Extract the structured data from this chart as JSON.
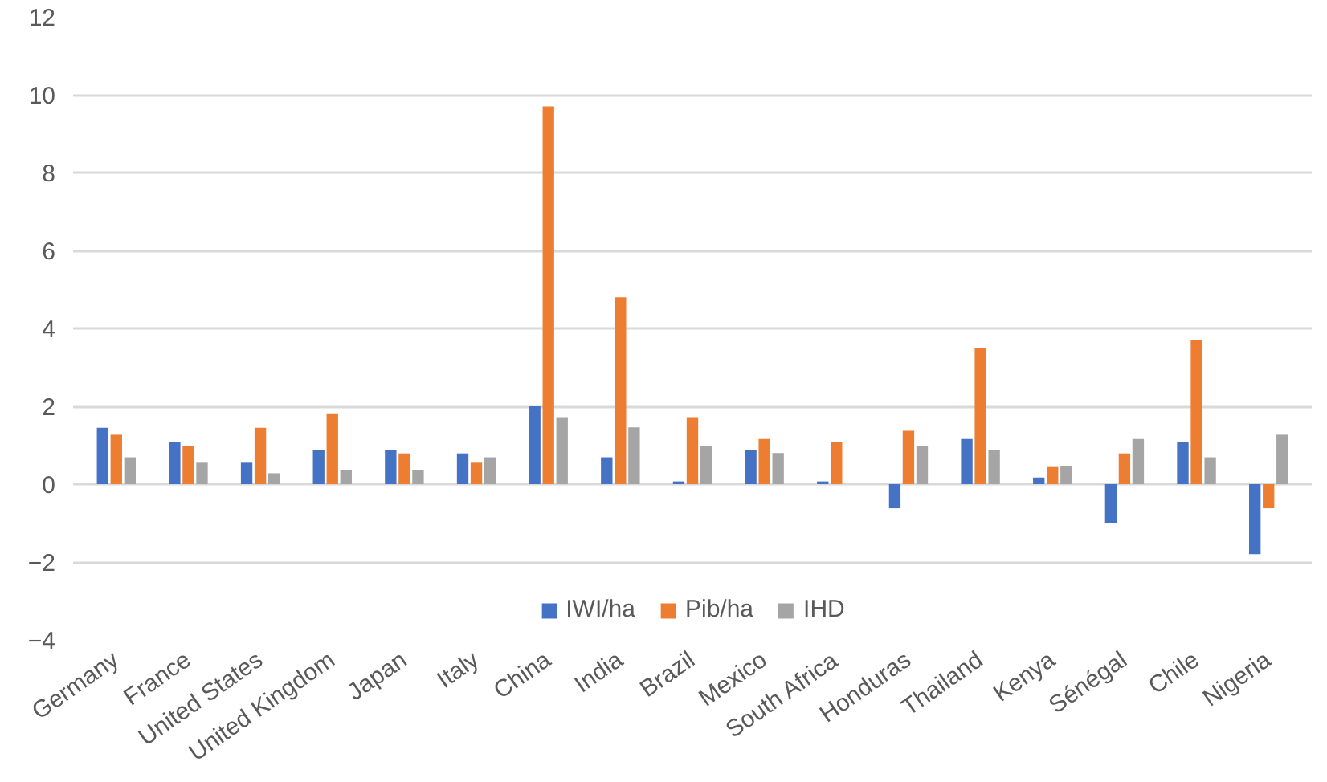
{
  "chart_data": {
    "type": "bar",
    "categories": [
      "Germany",
      "France",
      "United States",
      "United Kingdom",
      "Japan",
      "Italy",
      "China",
      "India",
      "Brazil",
      "Mexico",
      "South Africa",
      "Honduras",
      "Thailand",
      "Kenya",
      "Sénégal",
      "Chile",
      "Nigeria"
    ],
    "series": [
      {
        "name": "IWI/ha",
        "color": "#4472c4",
        "values": [
          1.45,
          1.08,
          0.55,
          0.88,
          0.88,
          0.79,
          2.0,
          0.69,
          0.07,
          0.88,
          0.07,
          -0.62,
          1.16,
          0.17,
          -1.0,
          1.08,
          -1.8
        ]
      },
      {
        "name": "Pib/ha",
        "color": "#ed7d31",
        "values": [
          1.27,
          0.99,
          1.45,
          1.8,
          0.79,
          0.55,
          9.7,
          4.8,
          1.7,
          1.16,
          1.08,
          1.37,
          3.5,
          0.44,
          0.79,
          3.7,
          -0.62
        ]
      },
      {
        "name": "IHD",
        "color": "#a5a5a5",
        "values": [
          0.69,
          0.55,
          0.28,
          0.37,
          0.37,
          0.69,
          1.7,
          1.46,
          0.99,
          0.8,
          null,
          0.99,
          0.88,
          0.46,
          1.16,
          0.69,
          1.27
        ]
      }
    ],
    "ylim": [
      -4,
      12
    ],
    "yticks": [
      -4,
      -2,
      0,
      2,
      4,
      6,
      8,
      10,
      12
    ],
    "grid": "y",
    "legend": "bottom"
  }
}
